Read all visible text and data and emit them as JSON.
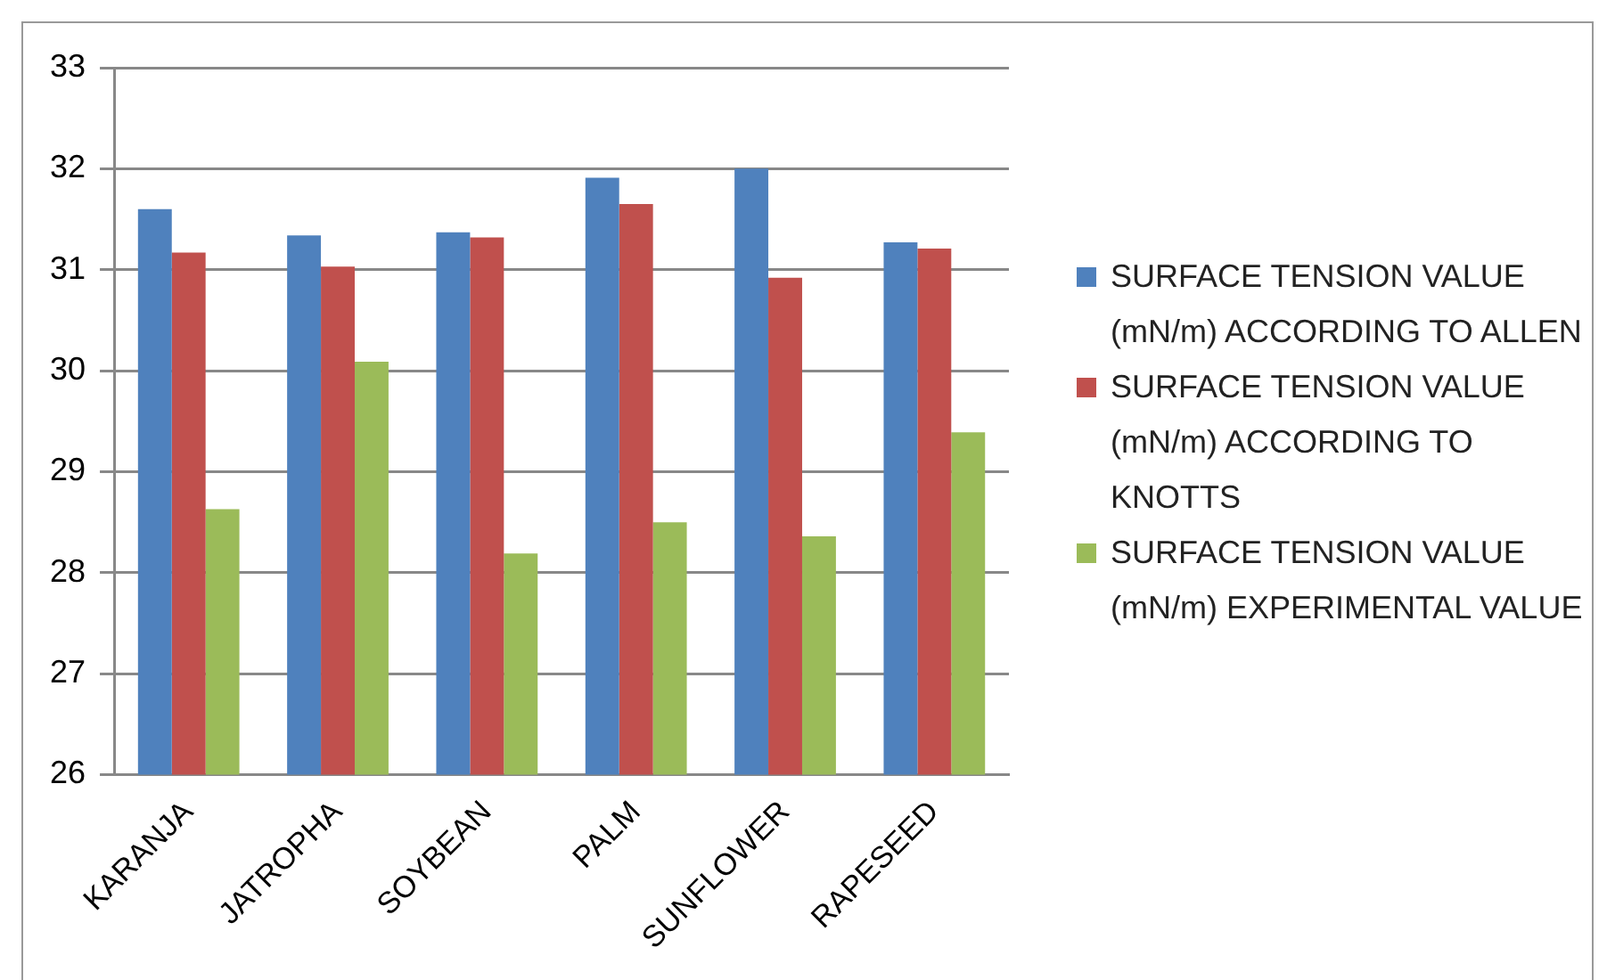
{
  "chart_data": {
    "type": "bar",
    "categories": [
      "KARANJA",
      "JATROPHA",
      "SOYBEAN",
      "PALM",
      "SUNFLOWER",
      "RAPESEED"
    ],
    "series": [
      {
        "name": "SURFACE TENSION VALUE (mN/m) ACCORDING TO ALLEN",
        "color": "#4f81bd",
        "values": [
          31.6,
          31.34,
          31.37,
          31.91,
          32.0,
          31.27
        ]
      },
      {
        "name": "SURFACE TENSION VALUE (mN/m) ACCORDING TO KNOTTS",
        "color": "#c0504d",
        "values": [
          31.17,
          31.03,
          31.32,
          31.65,
          30.92,
          31.21
        ]
      },
      {
        "name": "SURFACE TENSION VALUE (mN/m) EXPERIMENTAL VALUE",
        "color": "#9bbb59",
        "values": [
          28.63,
          30.09,
          28.19,
          28.5,
          28.36,
          29.39
        ]
      }
    ],
    "ylim": [
      26,
      33
    ],
    "yticks": [
      26,
      27,
      28,
      29,
      30,
      31,
      32,
      33
    ],
    "grid": "y",
    "legend": "right"
  }
}
